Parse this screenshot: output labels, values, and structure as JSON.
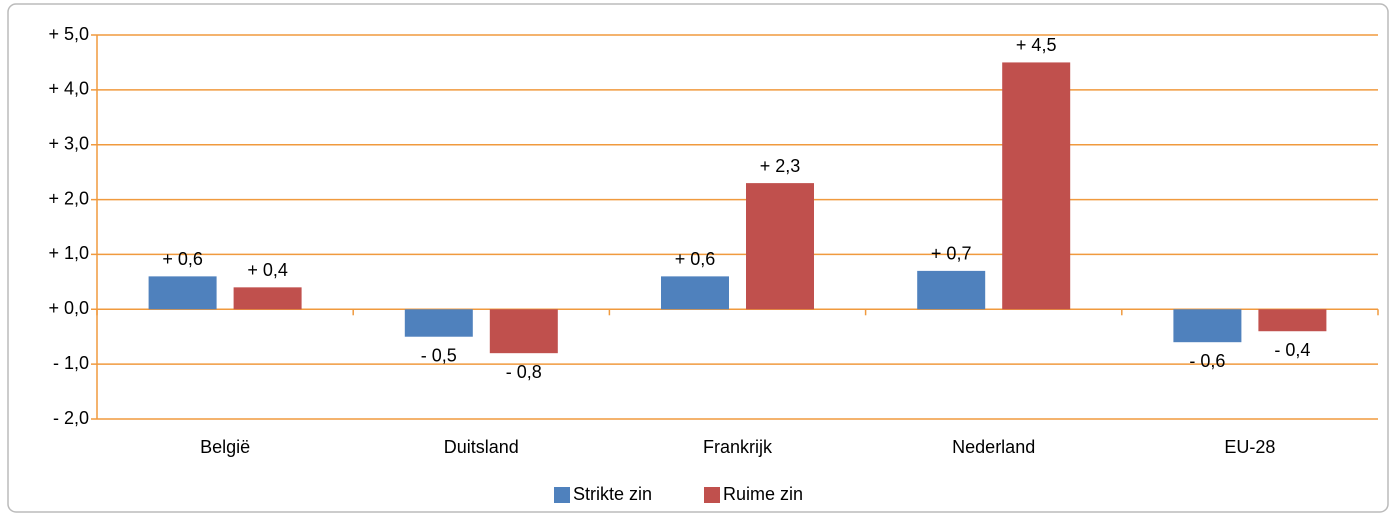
{
  "chart_data": {
    "type": "bar",
    "categories": [
      "België",
      "Duitsland",
      "Frankrijk",
      "Nederland",
      "EU-28"
    ],
    "series": [
      {
        "name": "Strikte zin",
        "color": "#4f81bd",
        "values": [
          0.6,
          -0.5,
          0.6,
          0.7,
          -0.6
        ],
        "value_labels": [
          "+ 0,6",
          "- 0,5",
          "+ 0,6",
          "+ 0,7",
          "- 0,6"
        ]
      },
      {
        "name": "Ruime zin",
        "color": "#c0504d",
        "values": [
          0.4,
          -0.8,
          2.3,
          4.5,
          -0.4
        ],
        "value_labels": [
          "+ 0,4",
          "- 0,8",
          "+ 2,3",
          "+ 4,5",
          "- 0,4"
        ]
      }
    ],
    "ylim": [
      -2,
      5
    ],
    "yticks": [
      {
        "value": -2,
        "label": "- 2,0"
      },
      {
        "value": -1,
        "label": "- 1,0"
      },
      {
        "value": 0,
        "label": "+ 0,0"
      },
      {
        "value": 1,
        "label": "+ 1,0"
      },
      {
        "value": 2,
        "label": "+ 2,0"
      },
      {
        "value": 3,
        "label": "+ 3,0"
      },
      {
        "value": 4,
        "label": "+ 4,0"
      },
      {
        "value": 5,
        "label": "+ 5,0"
      }
    ],
    "grid": true,
    "legend": "bottom"
  }
}
